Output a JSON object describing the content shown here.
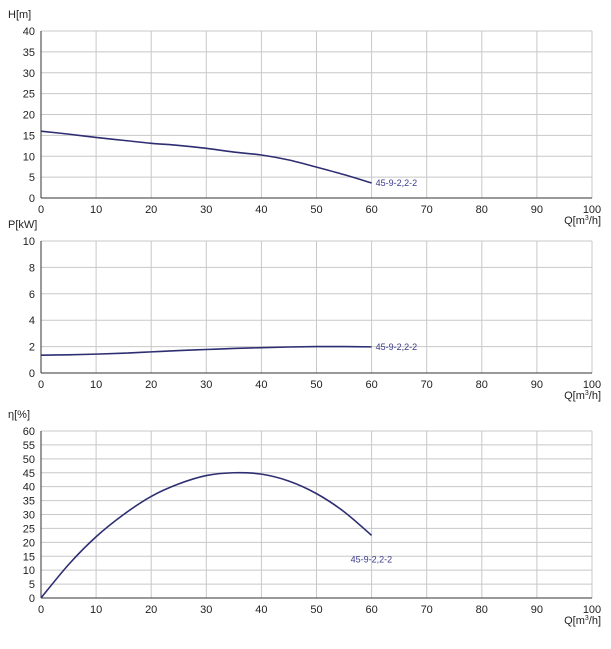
{
  "colors": {
    "curve": "#2e2e72",
    "label": "#3a3a8c",
    "grid": "#c8c8c8",
    "axis": "#333333"
  },
  "chart_data": [
    {
      "type": "line",
      "ylabel": "H[m]",
      "xlabel": "Q[m³/h]",
      "xlim": [
        0,
        100
      ],
      "ylim": [
        0,
        40
      ],
      "xticks": [
        0,
        10,
        20,
        30,
        40,
        50,
        60,
        70,
        80,
        90,
        100
      ],
      "yticks": [
        0,
        5,
        10,
        15,
        20,
        25,
        30,
        35,
        40
      ],
      "series": [
        {
          "name": "45-9-2,2-2",
          "x": [
            0,
            5,
            10,
            15,
            20,
            25,
            30,
            35,
            40,
            45,
            50,
            55,
            60
          ],
          "y": [
            16,
            15.3,
            14.5,
            13.8,
            13.1,
            12.6,
            11.9,
            11.0,
            10.3,
            9.1,
            7.4,
            5.6,
            3.6
          ]
        }
      ]
    },
    {
      "type": "line",
      "ylabel": "P[kW]",
      "xlabel": "Q[m³/h]",
      "xlim": [
        0,
        100
      ],
      "ylim": [
        0,
        10
      ],
      "xticks": [
        0,
        10,
        20,
        30,
        40,
        50,
        60,
        70,
        80,
        90,
        100
      ],
      "yticks": [
        0,
        2,
        4,
        6,
        8,
        10
      ],
      "series": [
        {
          "name": "45-9-2,2-2",
          "x": [
            0,
            5,
            10,
            15,
            20,
            25,
            30,
            35,
            40,
            45,
            50,
            55,
            60
          ],
          "y": [
            1.35,
            1.38,
            1.43,
            1.5,
            1.6,
            1.7,
            1.78,
            1.86,
            1.92,
            1.97,
            2.0,
            2.0,
            1.98
          ]
        }
      ]
    },
    {
      "type": "line",
      "ylabel": "η[%]",
      "xlabel": "Q[m³/h]",
      "xlim": [
        0,
        100
      ],
      "ylim": [
        0,
        60
      ],
      "xticks": [
        0,
        10,
        20,
        30,
        40,
        50,
        60,
        70,
        80,
        90,
        100
      ],
      "yticks": [
        0,
        5,
        10,
        15,
        20,
        25,
        30,
        35,
        40,
        45,
        50,
        55,
        60
      ],
      "series": [
        {
          "name": "45-9-2,2-2",
          "x": [
            0,
            5,
            10,
            15,
            20,
            25,
            30,
            35,
            40,
            45,
            50,
            55,
            60
          ],
          "y": [
            0,
            12,
            22,
            30,
            36.5,
            41,
            44,
            45,
            44.5,
            42,
            37.5,
            31,
            22.5
          ]
        }
      ]
    }
  ]
}
